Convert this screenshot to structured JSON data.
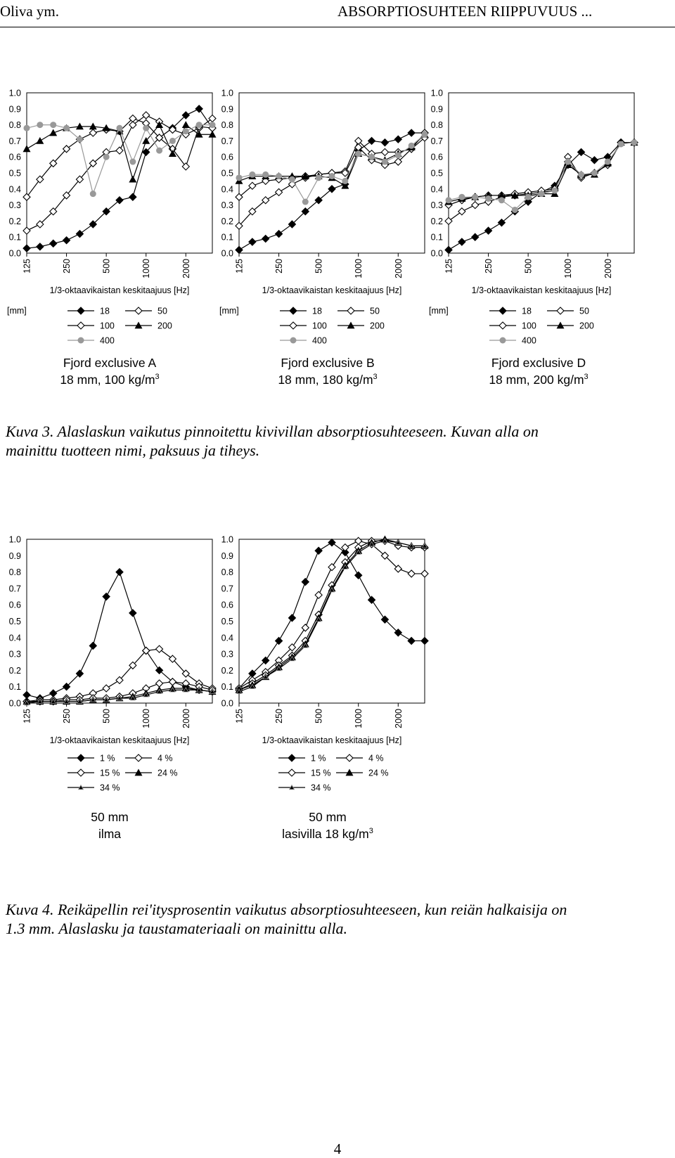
{
  "header": {
    "left": "Oliva ym.",
    "right": "ABSORPTIOSUHTEEN RIIPPUVUUS ..."
  },
  "figure3": {
    "caption_line1": "Kuva 3. Alaslaskun vaikutus pinnoitettu kivivillan absorptiosuhteeseen. Kuvan alla on",
    "caption_line2": "mainittu tuotteen nimi, paksuus ja tiheys."
  },
  "figure4": {
    "caption_line1": "Kuva 4. Reikäpellin rei'itysprosentin vaikutus absorptiosuhteeseen, kun reiän halkaisija on",
    "caption_line2": "1.3 mm. Alaslasku ja taustamateriaali on mainittu alla."
  },
  "page_number": "4",
  "axis": {
    "xlabel": "1/3-oktaavikaistan keskitaajuus [Hz]",
    "y_ticks": [
      "0.0",
      "0.1",
      "0.2",
      "0.3",
      "0.4",
      "0.5",
      "0.6",
      "0.7",
      "0.8",
      "0.9",
      "1.0"
    ],
    "x_ticks": [
      "125",
      "250",
      "500",
      "1000",
      "2000"
    ]
  },
  "legend_unit": "[mm]",
  "colors": {
    "black": "#000000",
    "grey": "#999999",
    "white": "#ffffff"
  },
  "chart_data": [
    {
      "type": "line",
      "title_line1": "Fjord exclusive A",
      "title_line2": "18 mm, 100 kg/m",
      "title_sup": "3",
      "xlabel": "1/3-oktaavikaistan keskitaajuus [Hz]",
      "ylim": [
        0,
        1
      ],
      "x": [
        125,
        160,
        200,
        250,
        315,
        400,
        500,
        630,
        800,
        1000,
        1250,
        1600,
        2000,
        2500,
        3150
      ],
      "series": [
        {
          "name": "18",
          "marker": "diamond-filled",
          "values": [
            0.03,
            0.04,
            0.06,
            0.08,
            0.12,
            0.18,
            0.26,
            0.33,
            0.35,
            0.63,
            0.72,
            0.78,
            0.86,
            0.9,
            0.78
          ]
        },
        {
          "name": "50",
          "marker": "diamond-open",
          "values": [
            0.14,
            0.18,
            0.26,
            0.36,
            0.46,
            0.56,
            0.63,
            0.64,
            0.8,
            0.86,
            0.82,
            0.77,
            0.74,
            0.78,
            0.84
          ]
        },
        {
          "name": "100",
          "marker": "diamond-open",
          "values": [
            0.35,
            0.46,
            0.56,
            0.65,
            0.71,
            0.75,
            0.77,
            0.76,
            0.84,
            0.81,
            0.72,
            0.65,
            0.54,
            0.79,
            0.78
          ]
        },
        {
          "name": "200",
          "marker": "triangle",
          "values": [
            0.65,
            0.7,
            0.75,
            0.78,
            0.79,
            0.79,
            0.78,
            0.76,
            0.46,
            0.7,
            0.8,
            0.62,
            0.8,
            0.74,
            0.74
          ]
        },
        {
          "name": "400",
          "marker": "circle-grey",
          "values": [
            0.78,
            0.8,
            0.8,
            0.78,
            0.71,
            0.37,
            0.6,
            0.78,
            0.57,
            0.78,
            0.64,
            0.7,
            0.76,
            0.8,
            0.8
          ]
        }
      ]
    },
    {
      "type": "line",
      "title_line1": "Fjord exclusive B",
      "title_line2": "18 mm, 180 kg/m",
      "title_sup": "3",
      "xlabel": "1/3-oktaavikaistan keskitaajuus [Hz]",
      "ylim": [
        0,
        1
      ],
      "x": [
        125,
        160,
        200,
        250,
        315,
        400,
        500,
        630,
        800,
        1000,
        1250,
        1600,
        2000,
        2500,
        3150
      ],
      "series": [
        {
          "name": "18",
          "marker": "diamond-filled",
          "values": [
            0.02,
            0.07,
            0.09,
            0.12,
            0.18,
            0.26,
            0.33,
            0.4,
            0.43,
            0.64,
            0.7,
            0.69,
            0.71,
            0.75,
            0.75
          ]
        },
        {
          "name": "50",
          "marker": "diamond-open",
          "values": [
            0.17,
            0.26,
            0.33,
            0.38,
            0.43,
            0.47,
            0.49,
            0.5,
            0.51,
            0.7,
            0.62,
            0.63,
            0.63,
            0.65,
            0.72
          ]
        },
        {
          "name": "100",
          "marker": "diamond-open",
          "values": [
            0.35,
            0.42,
            0.45,
            0.46,
            0.47,
            0.48,
            0.49,
            0.5,
            0.5,
            0.66,
            0.58,
            0.55,
            0.57,
            0.65,
            0.75
          ]
        },
        {
          "name": "200",
          "marker": "triangle",
          "values": [
            0.45,
            0.48,
            0.48,
            0.48,
            0.48,
            0.48,
            0.48,
            0.47,
            0.42,
            0.62,
            0.6,
            0.58,
            0.62,
            0.66,
            0.74
          ]
        },
        {
          "name": "400",
          "marker": "circle-grey",
          "values": [
            0.47,
            0.49,
            0.49,
            0.48,
            0.46,
            0.32,
            0.47,
            0.48,
            0.45,
            0.62,
            0.6,
            0.57,
            0.61,
            0.67,
            0.74
          ]
        }
      ]
    },
    {
      "type": "line",
      "title_line1": "Fjord exclusive D",
      "title_line2": "18 mm, 200 kg/m",
      "title_sup": "3",
      "xlabel": "1/3-oktaavikaistan keskitaajuus [Hz]",
      "ylim": [
        0,
        1
      ],
      "x": [
        125,
        160,
        200,
        250,
        315,
        400,
        500,
        630,
        800,
        1000,
        1250,
        1600,
        2000,
        2500,
        3150
      ],
      "series": [
        {
          "name": "18",
          "marker": "diamond-filled",
          "values": [
            0.02,
            0.07,
            0.1,
            0.14,
            0.19,
            0.26,
            0.32,
            0.38,
            0.42,
            0.55,
            0.63,
            0.58,
            0.6,
            0.69,
            0.69
          ]
        },
        {
          "name": "50",
          "marker": "diamond-open",
          "values": [
            0.2,
            0.26,
            0.3,
            0.32,
            0.35,
            0.36,
            0.37,
            0.38,
            0.39,
            0.6,
            0.47,
            0.5,
            0.55,
            0.69,
            0.69
          ]
        },
        {
          "name": "100",
          "marker": "diamond-open",
          "values": [
            0.3,
            0.33,
            0.35,
            0.36,
            0.36,
            0.37,
            0.38,
            0.39,
            0.4,
            0.57,
            0.48,
            0.5,
            0.55,
            0.69,
            0.69
          ]
        },
        {
          "name": "200",
          "marker": "triangle",
          "values": [
            0.32,
            0.34,
            0.35,
            0.36,
            0.36,
            0.36,
            0.36,
            0.37,
            0.37,
            0.55,
            0.49,
            0.49,
            0.56,
            0.69,
            0.69
          ]
        },
        {
          "name": "400",
          "marker": "circle-grey",
          "values": [
            0.33,
            0.35,
            0.35,
            0.34,
            0.33,
            0.27,
            0.35,
            0.37,
            0.39,
            0.57,
            0.49,
            0.5,
            0.57,
            0.68,
            0.69
          ]
        }
      ]
    },
    {
      "type": "line",
      "title_line1": "50 mm",
      "title_line2": "ilma",
      "title_sup": "",
      "xlabel": "1/3-oktaavikaistan keskitaajuus [Hz]",
      "ylim": [
        0,
        1
      ],
      "x": [
        125,
        160,
        200,
        250,
        315,
        400,
        500,
        630,
        800,
        1000,
        1250,
        1600,
        2000,
        2500,
        3150
      ],
      "series": [
        {
          "name": "1 %",
          "marker": "diamond-filled",
          "values": [
            0.05,
            0.03,
            0.06,
            0.1,
            0.18,
            0.35,
            0.65,
            0.8,
            0.55,
            0.32,
            0.2,
            0.13,
            0.1,
            0.08,
            0.07
          ]
        },
        {
          "name": "4 %",
          "marker": "diamond-open",
          "values": [
            0.01,
            0.02,
            0.02,
            0.03,
            0.04,
            0.06,
            0.09,
            0.14,
            0.23,
            0.32,
            0.33,
            0.27,
            0.18,
            0.12,
            0.09
          ]
        },
        {
          "name": "15 %",
          "marker": "diamond-open",
          "values": [
            0.01,
            0.01,
            0.01,
            0.02,
            0.02,
            0.03,
            0.03,
            0.04,
            0.06,
            0.09,
            0.12,
            0.13,
            0.12,
            0.1,
            0.08
          ]
        },
        {
          "name": "24 %",
          "marker": "triangle",
          "values": [
            0.01,
            0.01,
            0.01,
            0.01,
            0.01,
            0.02,
            0.02,
            0.03,
            0.04,
            0.06,
            0.08,
            0.09,
            0.09,
            0.08,
            0.07
          ]
        },
        {
          "name": "34 %",
          "marker": "triangle-small",
          "values": [
            0.0,
            0.01,
            0.01,
            0.01,
            0.01,
            0.02,
            0.02,
            0.03,
            0.03,
            0.05,
            0.07,
            0.08,
            0.08,
            0.08,
            0.07
          ]
        }
      ]
    },
    {
      "type": "line",
      "title_line1": "50 mm",
      "title_line2": "lasivilla 18 kg/m",
      "title_sup": "3",
      "xlabel": "1/3-oktaavikaistan keskitaajuus [Hz]",
      "ylim": [
        0,
        1
      ],
      "x": [
        125,
        160,
        200,
        250,
        315,
        400,
        500,
        630,
        800,
        1000,
        1250,
        1600,
        2000,
        2500,
        3150
      ],
      "series": [
        {
          "name": "1 %",
          "marker": "diamond-filled",
          "values": [
            0.09,
            0.18,
            0.26,
            0.38,
            0.52,
            0.74,
            0.93,
            0.98,
            0.92,
            0.78,
            0.63,
            0.51,
            0.43,
            0.38,
            0.38
          ]
        },
        {
          "name": "4 %",
          "marker": "diamond-open",
          "values": [
            0.09,
            0.14,
            0.19,
            0.26,
            0.34,
            0.46,
            0.66,
            0.83,
            0.95,
            0.99,
            0.97,
            0.9,
            0.82,
            0.79,
            0.79
          ]
        },
        {
          "name": "15 %",
          "marker": "diamond-open",
          "values": [
            0.08,
            0.12,
            0.17,
            0.23,
            0.29,
            0.38,
            0.54,
            0.72,
            0.86,
            0.95,
            0.99,
            0.99,
            0.96,
            0.95,
            0.95
          ]
        },
        {
          "name": "24 %",
          "marker": "triangle",
          "values": [
            0.08,
            0.11,
            0.16,
            0.22,
            0.28,
            0.36,
            0.52,
            0.7,
            0.84,
            0.93,
            0.98,
            1.0,
            0.98,
            0.96,
            0.96
          ]
        },
        {
          "name": "34 %",
          "marker": "triangle-small",
          "values": [
            0.07,
            0.1,
            0.16,
            0.21,
            0.27,
            0.35,
            0.51,
            0.69,
            0.83,
            0.92,
            0.97,
            0.99,
            0.98,
            0.96,
            0.96
          ]
        }
      ]
    }
  ]
}
